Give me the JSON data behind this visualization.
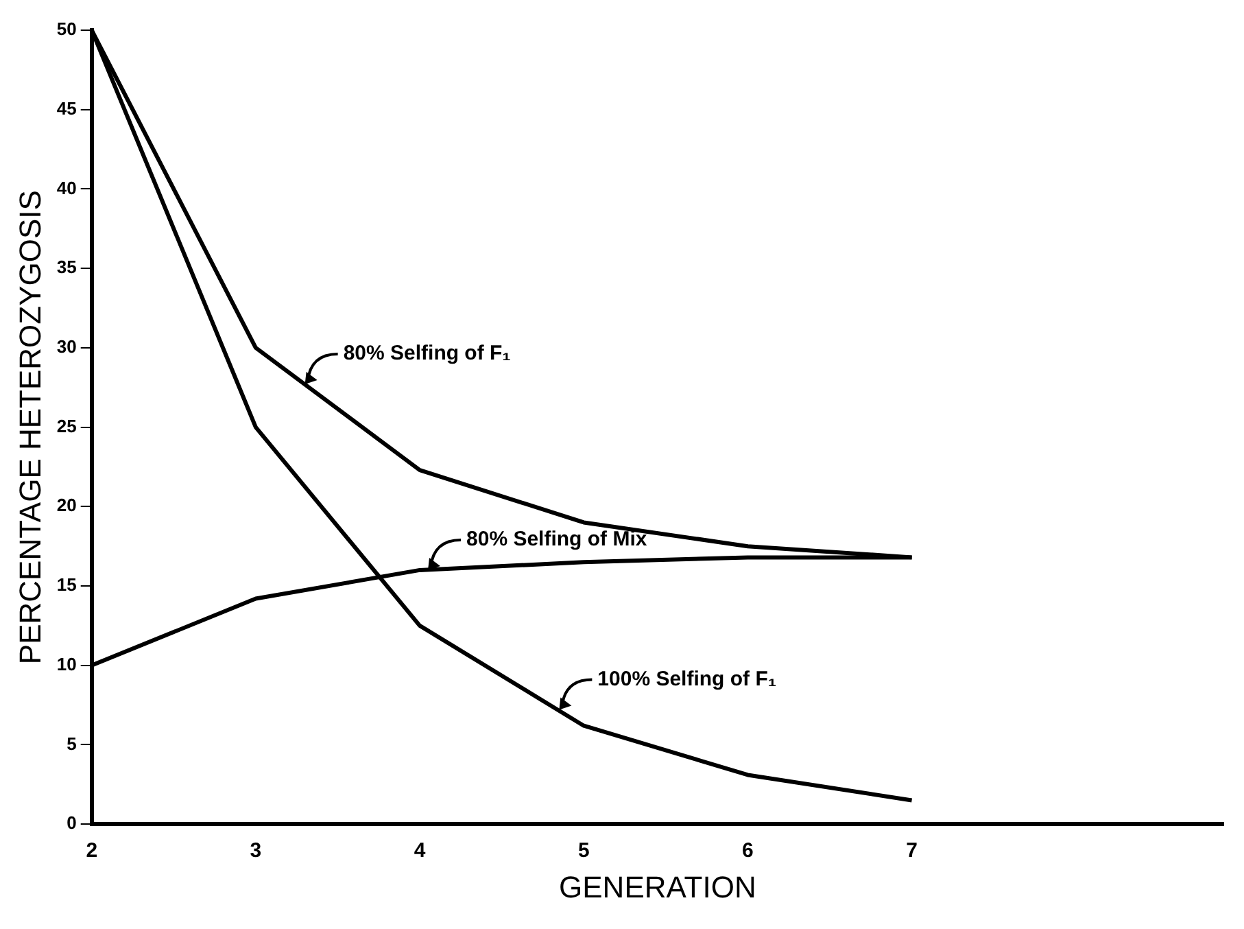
{
  "chart_data": {
    "type": "line",
    "xlabel": "GENERATION",
    "ylabel": "PERCENTAGE HETEROZYGOSIS",
    "x": [
      2,
      3,
      4,
      5,
      6,
      7
    ],
    "xlim": [
      2,
      8.9
    ],
    "xticks": [
      2,
      3,
      4,
      5,
      6,
      7
    ],
    "ylim": [
      0,
      50
    ],
    "yticks": [
      0,
      5,
      10,
      15,
      20,
      25,
      30,
      35,
      40,
      45,
      50
    ],
    "grid": false,
    "legend": false,
    "marker": "none",
    "line_style": "solid",
    "series": [
      {
        "color": "#000000",
        "values": [
          50,
          30,
          22.3,
          19,
          17.5,
          16.8
        ]
      },
      {
        "color": "#000000",
        "values": [
          10,
          14.2,
          16,
          16.5,
          16.8,
          16.8
        ]
      },
      {
        "color": "#000000",
        "values": [
          50,
          25,
          12.5,
          6.2,
          3.1,
          1.5
        ]
      }
    ],
    "annotations": [
      {
        "text": "80% Selfing of F₁",
        "x": 3.3,
        "y": 27.7
      },
      {
        "text": "80% Selfing of Mix",
        "x": 4.05,
        "y": 16
      },
      {
        "text": "100% Selfing of F₁",
        "x": 4.85,
        "y": 7.2
      }
    ]
  }
}
